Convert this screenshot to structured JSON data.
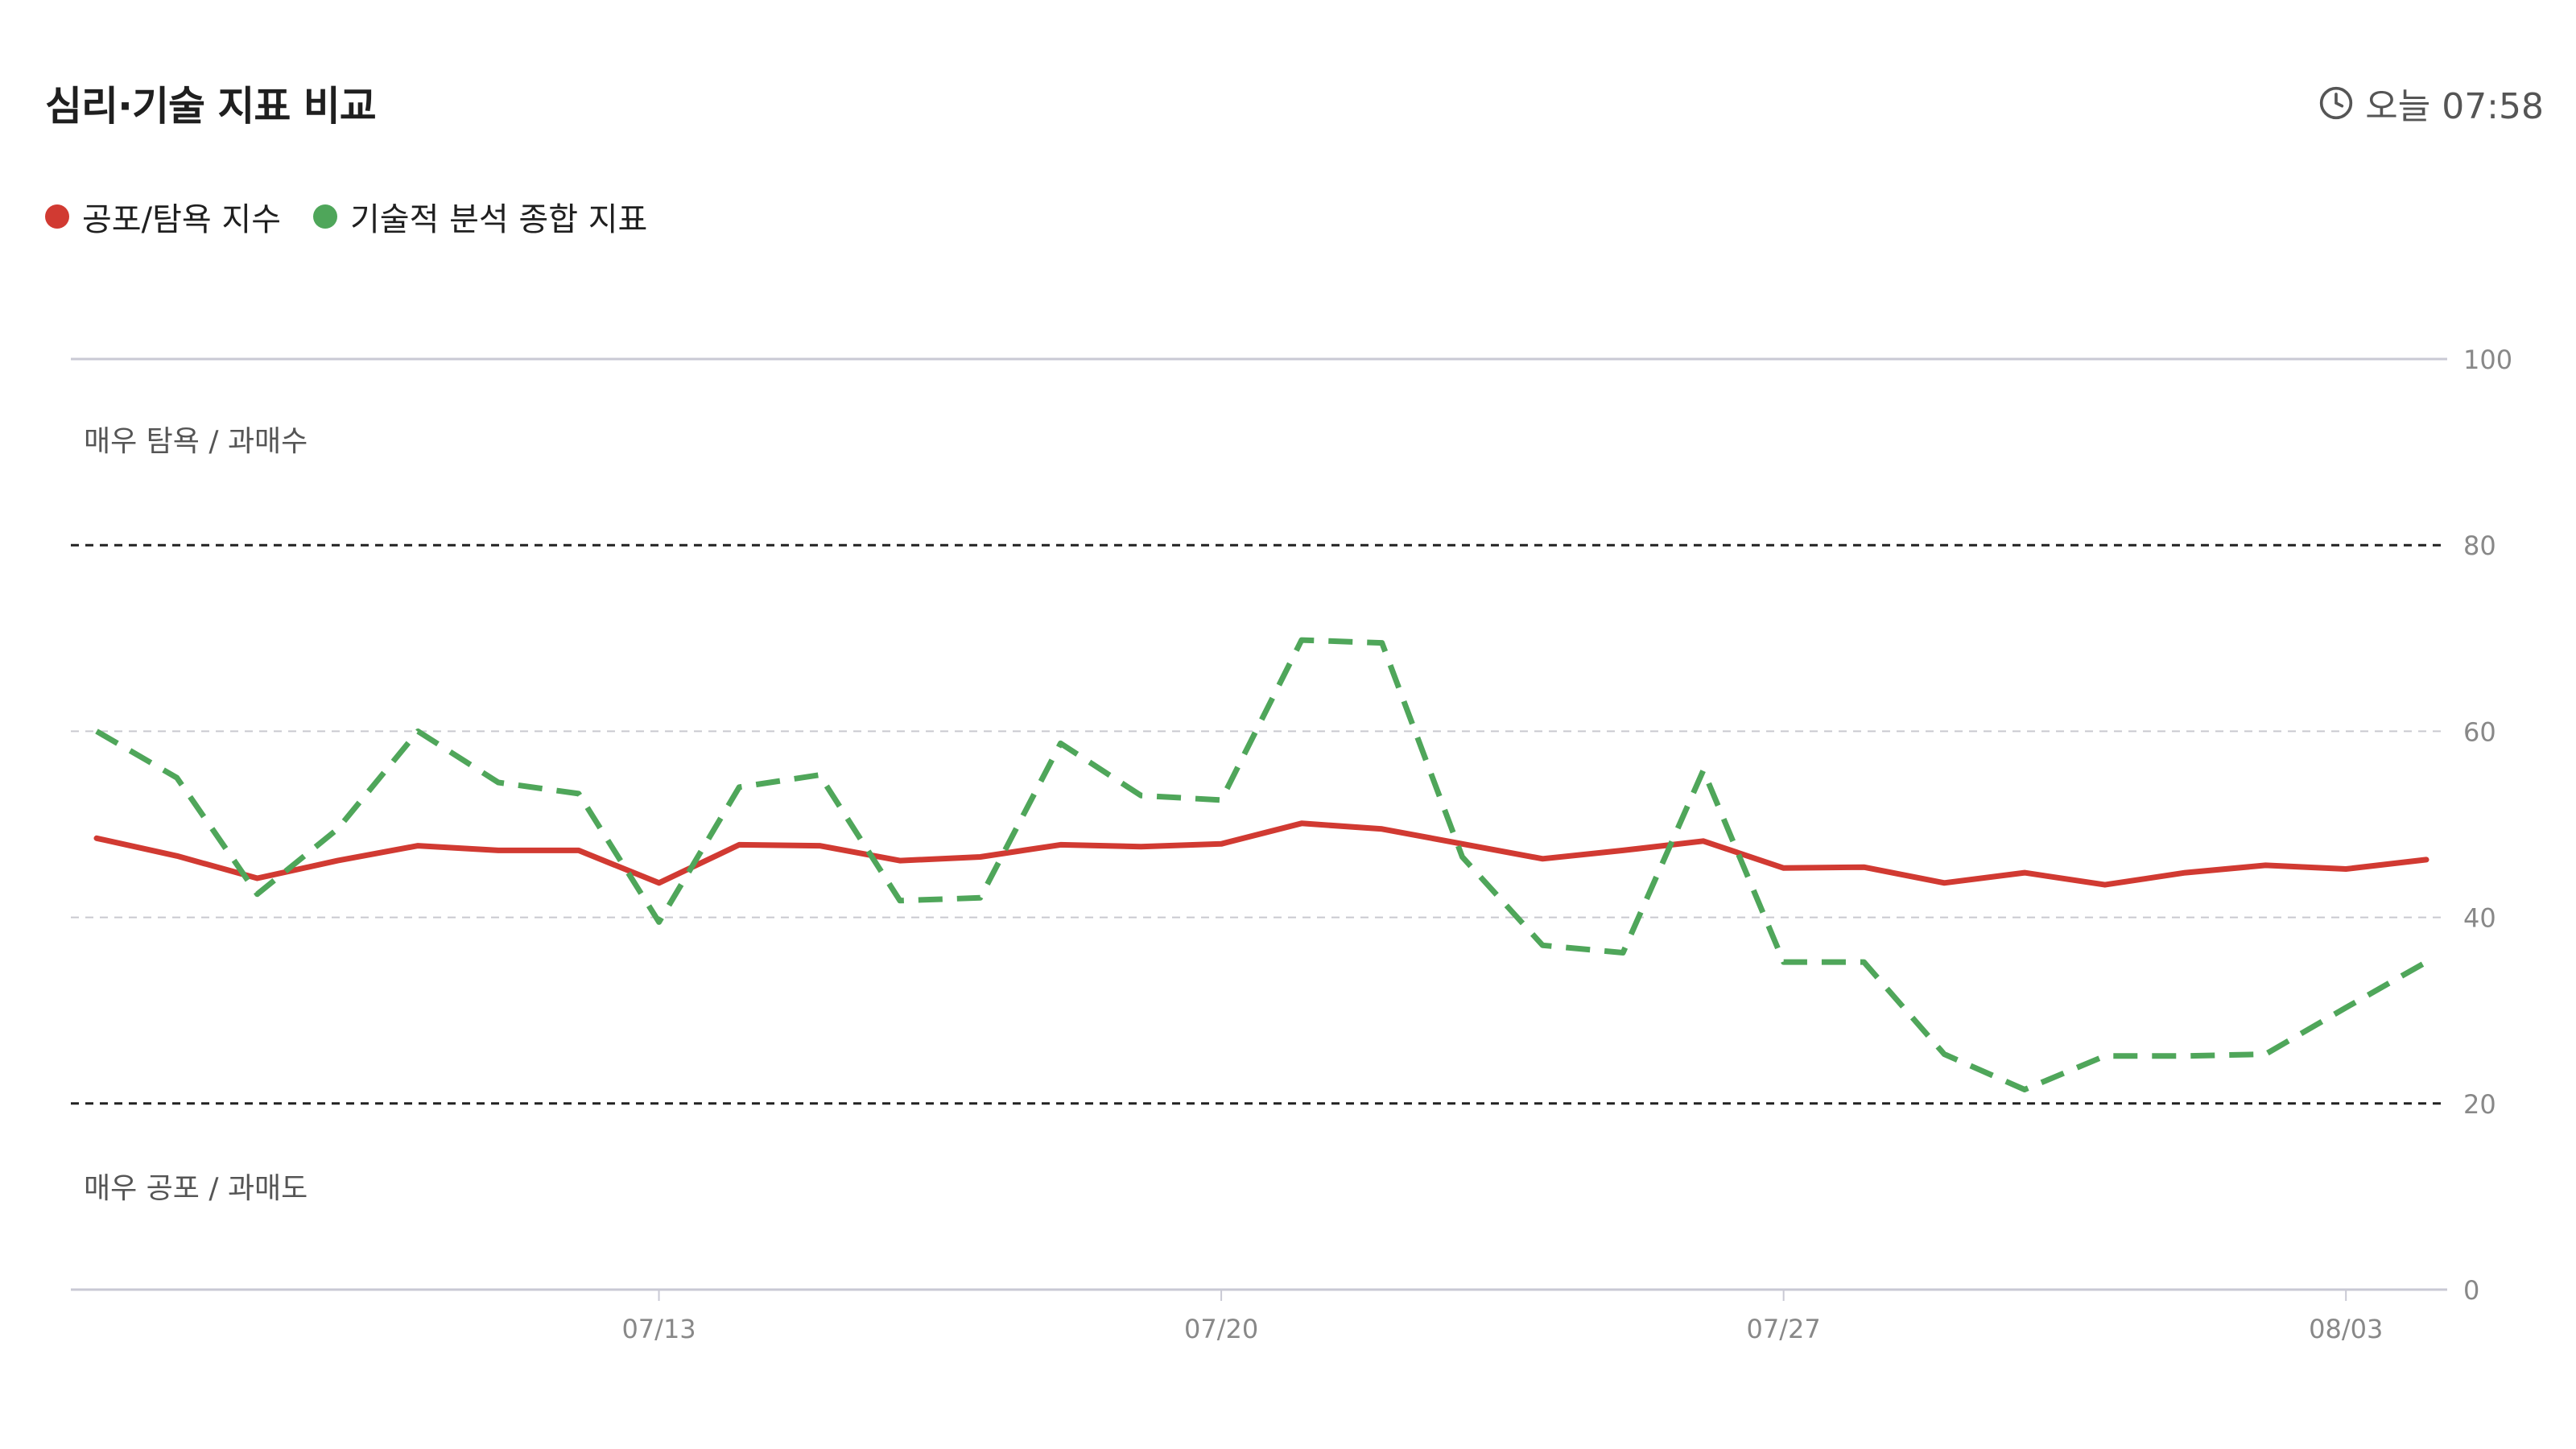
{
  "header": {
    "title": "심리·기술 지표 비교",
    "time_label": "오늘 07:58",
    "time_icon": "clock-icon"
  },
  "colors": {
    "fear_greed": "#d13a32",
    "technical": "#4fa65a",
    "threshold_line": "#222222",
    "grid_line": "#c9c9cf",
    "axis_line": "#c9c9d4"
  },
  "chart_data": {
    "type": "line",
    "title": "심리·기술 지표 비교",
    "legend_position": "top-left",
    "ylim": [
      0,
      100
    ],
    "y_ticks": [
      "0",
      "20",
      "40",
      "60",
      "80",
      "100"
    ],
    "x_ticks": [
      {
        "label": "07/13",
        "date": "07/13"
      },
      {
        "label": "07/20",
        "date": "07/20"
      },
      {
        "label": "07/27",
        "date": "07/27"
      },
      {
        "label": "08/03",
        "date": "08/03"
      }
    ],
    "x": [
      "07/06",
      "07/07",
      "07/08",
      "07/09",
      "07/10",
      "07/11",
      "07/12",
      "07/13",
      "07/14",
      "07/15",
      "07/16",
      "07/17",
      "07/18",
      "07/19",
      "07/20",
      "07/21",
      "07/22",
      "07/23",
      "07/24",
      "07/25",
      "07/26",
      "07/27",
      "07/28",
      "07/29",
      "07/30",
      "07/31",
      "08/01",
      "08/02",
      "08/03",
      "08/04"
    ],
    "series": [
      {
        "name": "공포/탐욕 지수",
        "style": "solid",
        "values": [
          48.5,
          46.6,
          44.2,
          46.1,
          47.7,
          47.2,
          47.2,
          43.7,
          47.8,
          47.7,
          46.1,
          46.5,
          47.8,
          47.6,
          47.9,
          50.1,
          49.5,
          47.9,
          46.3,
          47.2,
          48.2,
          45.3,
          45.4,
          43.7,
          44.8,
          43.5,
          44.8,
          45.6,
          45.2,
          46.2
        ]
      },
      {
        "name": "기술적 분석 종합 지표",
        "style": "dashed",
        "values": [
          60.0,
          55.0,
          42.5,
          49.5,
          60.0,
          54.5,
          53.3,
          39.5,
          54.0,
          55.3,
          41.8,
          42.1,
          58.7,
          53.1,
          52.6,
          69.8,
          69.5,
          46.5,
          37.0,
          36.2,
          55.8,
          35.2,
          35.2,
          25.3,
          21.5,
          25.1,
          25.1,
          25.3,
          30.3,
          35.2
        ]
      }
    ],
    "annotations": {
      "upper_zone": "매우 탐욕 / 과매수",
      "lower_zone": "매우 공포 / 과매도",
      "thresholds": [
        20,
        80
      ]
    }
  }
}
